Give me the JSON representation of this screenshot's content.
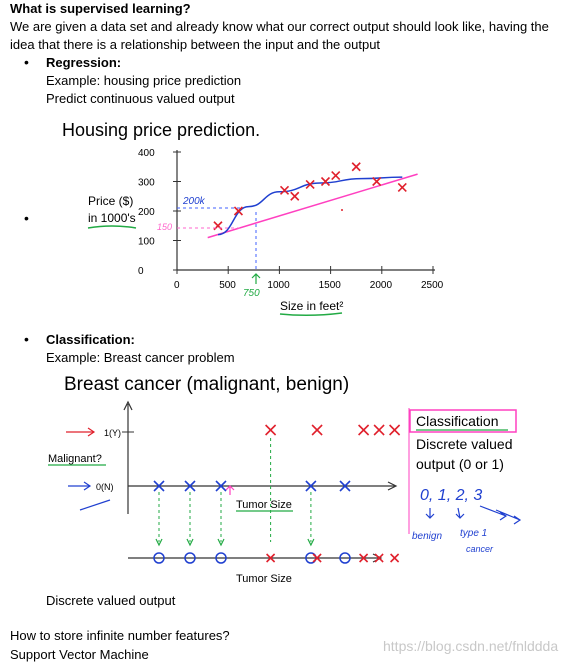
{
  "heading": "What is supervised learning?",
  "intro": {
    "line1": "We are given a data set and already know what our correct output should look like, having the",
    "line2": "idea that there is a relationship between the input and the output"
  },
  "regression": {
    "title": "Regression:",
    "example": "Example: housing price prediction",
    "note": "Predict continuous valued output"
  },
  "housing_chart": {
    "title": "Housing price prediction.",
    "ylabel_line1": "Price ($)",
    "ylabel_line2": "in 1000's",
    "xlabel": "Size in feet²",
    "y_ticks": [
      "400",
      "300",
      "200",
      "100",
      "0"
    ],
    "x_ticks": [
      "0",
      "500",
      "1000",
      "1500",
      "2000",
      "2500"
    ],
    "annotations": {
      "price_200k": "200k",
      "price_150": "150",
      "size_750": "750"
    }
  },
  "classification": {
    "title": "Classification:",
    "example": "Example: Breast cancer problem",
    "note": "Discrete valued output"
  },
  "cancer_chart": {
    "title": "Breast cancer (malignant, benign)",
    "y_label_1": "1(Y)",
    "y_label_0": "0(N)",
    "malignant_label": "Malignant?",
    "xlabel_top": "Tumor Size",
    "xlabel_bottom": "Tumor Size",
    "side_title": "Classification",
    "side_line1": "Discrete valued",
    "side_line2": "output (0 or 1)",
    "hand_values": "0, 1, 2, 3",
    "hand_benign": "benign",
    "hand_type": "type 1",
    "hand_cancer": "cancer"
  },
  "chart_data": [
    {
      "type": "scatter",
      "title": "Housing price prediction.",
      "xlabel": "Size in feet²",
      "ylabel": "Price ($) in 1000's",
      "xlim": [
        0,
        2500
      ],
      "ylim": [
        0,
        400
      ],
      "series": [
        {
          "name": "",
          "marker": "x",
          "color": "#e0202c",
          "x": [
            400,
            600,
            1050,
            1150,
            1300,
            1450,
            1550,
            1750,
            1950,
            2200
          ],
          "y": [
            150,
            200,
            270,
            250,
            290,
            300,
            320,
            350,
            300,
            280
          ]
        }
      ],
      "fits": [
        {
          "kind": "line",
          "color": "#ff40c0",
          "x": [
            300,
            2350
          ],
          "y": [
            110,
            325
          ]
        },
        {
          "kind": "curve",
          "color": "#2040d0",
          "x": [
            400,
            700,
            1000,
            1400,
            1800,
            2200
          ],
          "y": [
            120,
            215,
            265,
            295,
            310,
            315
          ]
        }
      ],
      "grid": false
    },
    {
      "type": "scatter",
      "title": "Breast cancer (malignant, benign)",
      "xlabel": "Tumor Size",
      "ylabel": "Malignant?",
      "series": [
        {
          "name": "",
          "marker": "x",
          "color": "#e0202c",
          "x": [
            4.6,
            6.1,
            7.6,
            8.1,
            8.6
          ],
          "y": [
            1,
            1,
            1,
            1,
            1
          ]
        },
        {
          "name": "",
          "marker": "x",
          "color": "#2040d0",
          "x": [
            1.0,
            2.0,
            3.0,
            5.9,
            7.0
          ],
          "y": [
            0,
            0,
            0,
            0,
            0
          ]
        }
      ],
      "grid": false
    }
  ],
  "footer": {
    "question": "How to store infinite number features?",
    "answer": "Support Vector Machine"
  },
  "watermark": "https://blog.csdn.net/fnlddda"
}
